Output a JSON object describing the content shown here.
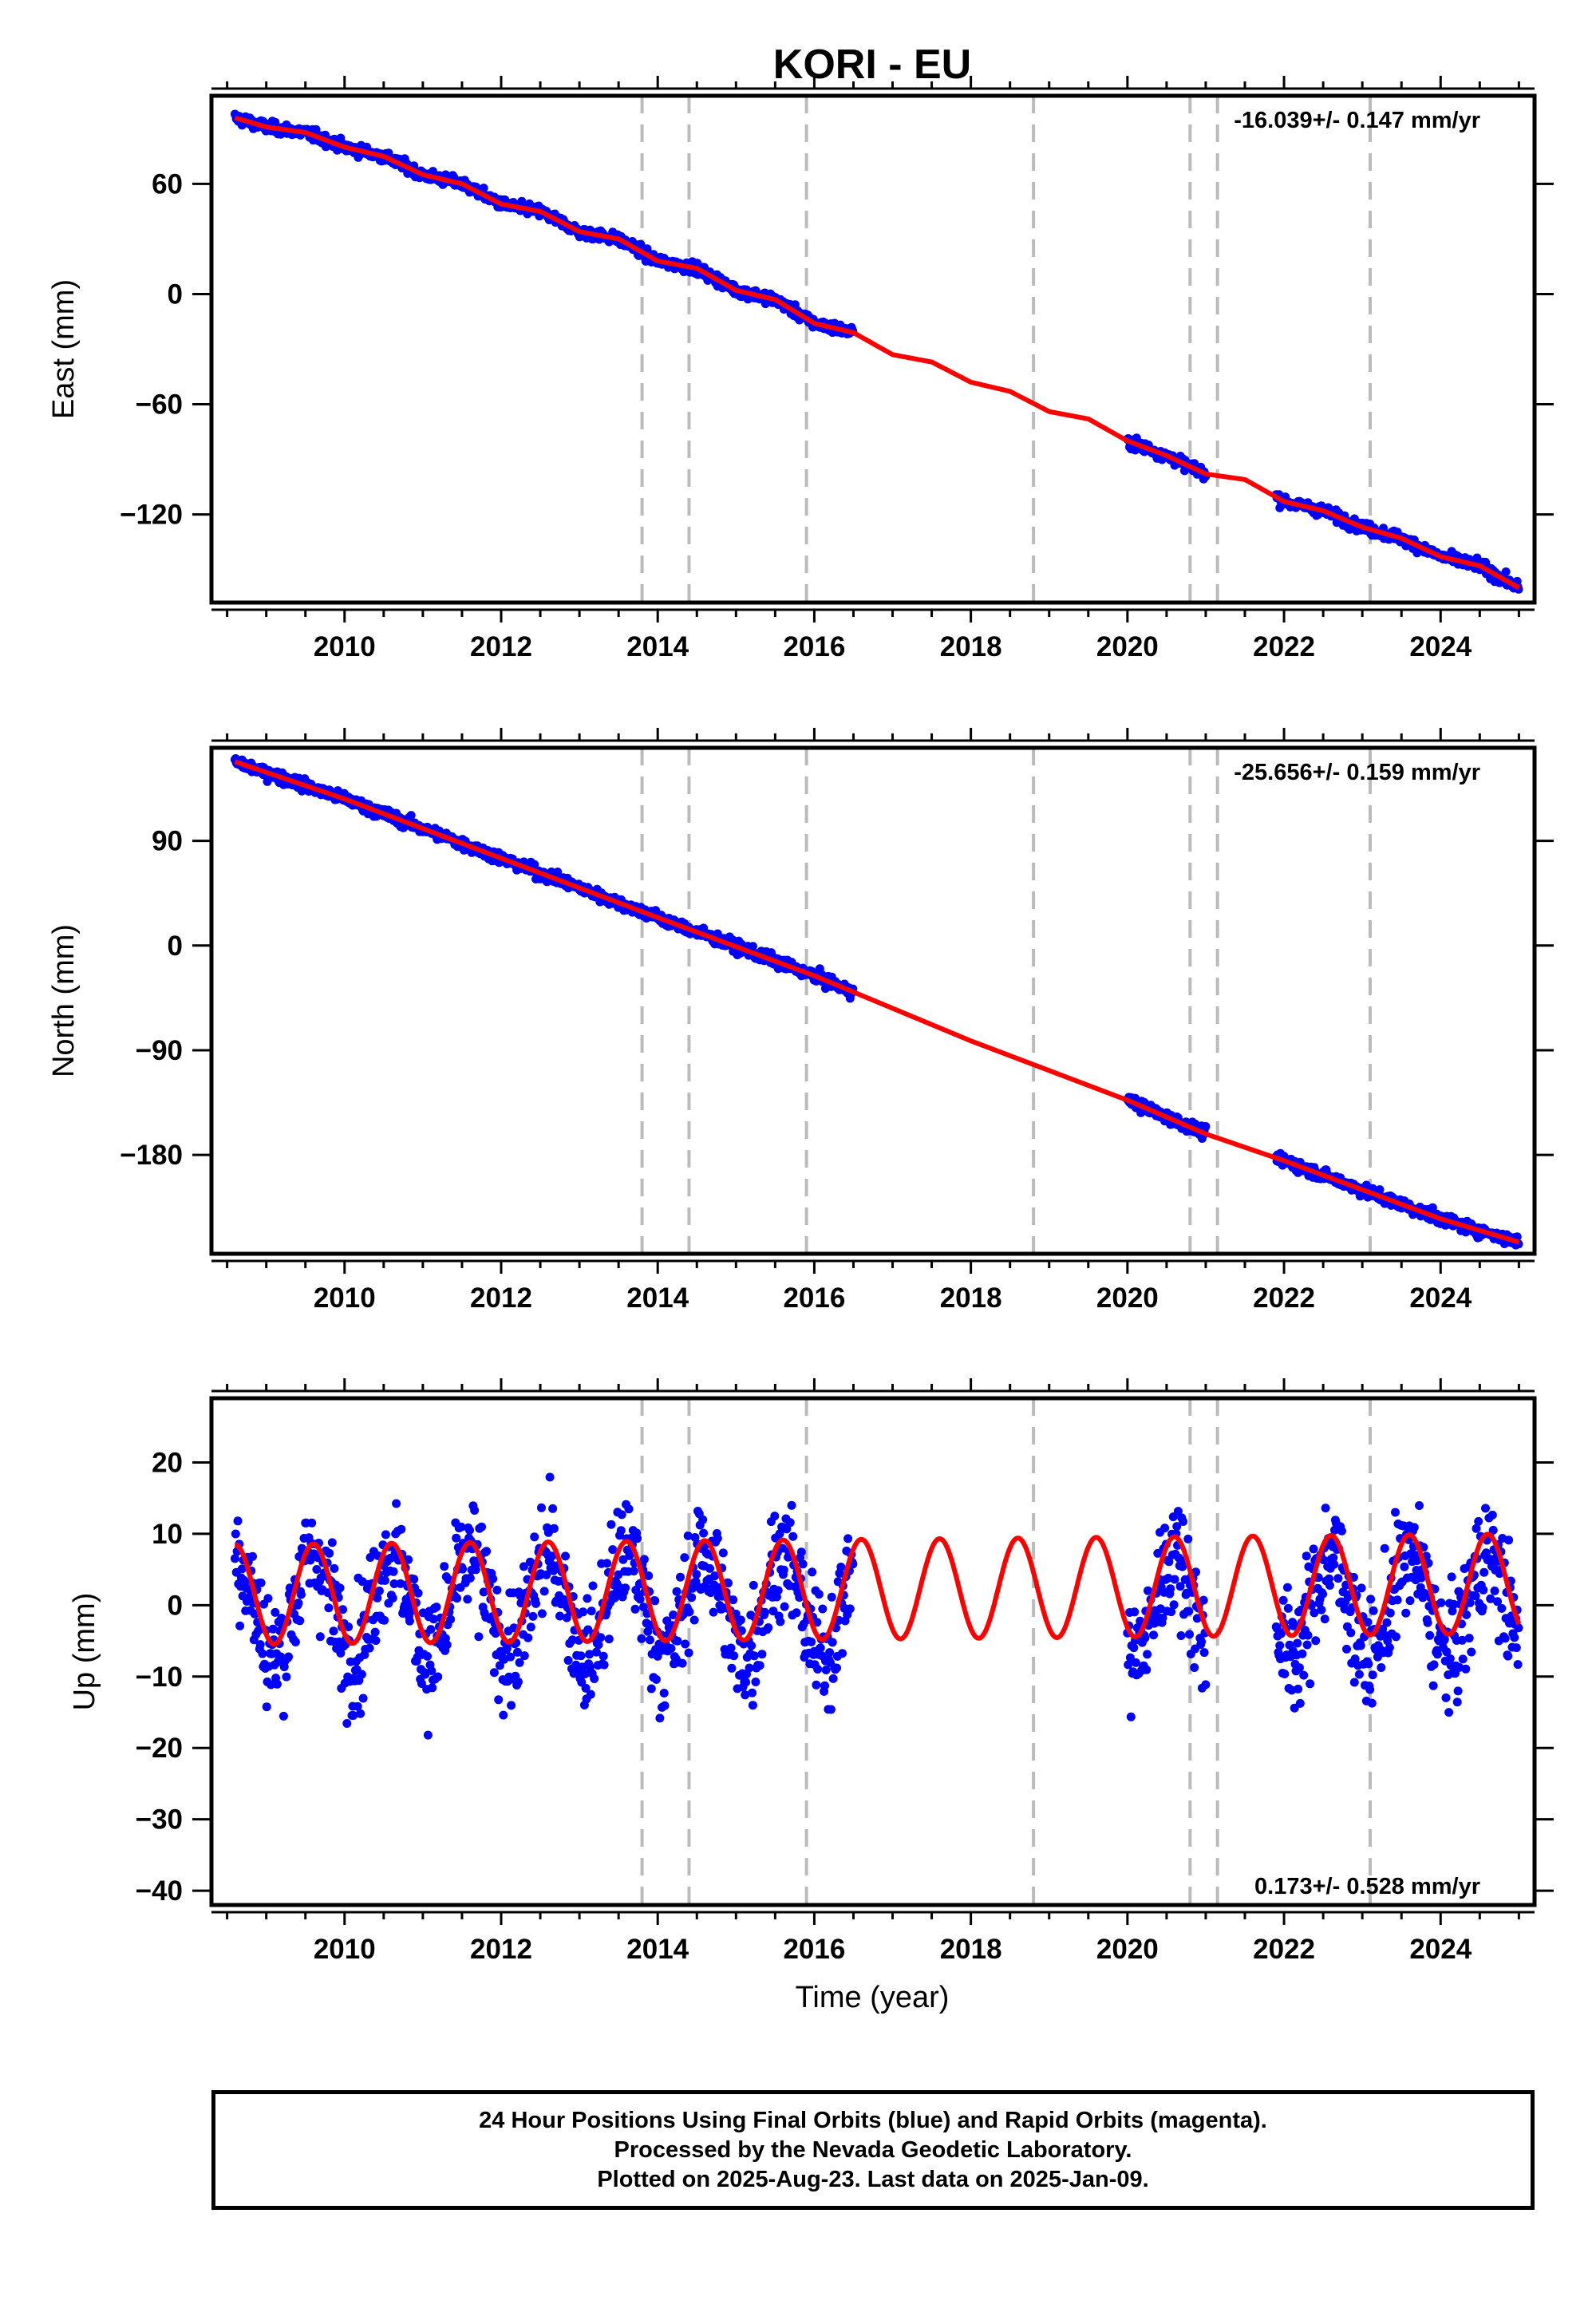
{
  "title": "KORI - EU",
  "x_axis": {
    "label": "Time (year)",
    "range": [
      2008.3,
      2025.2
    ],
    "ticks": [
      2010,
      2012,
      2014,
      2016,
      2018,
      2020,
      2022,
      2024
    ],
    "tick_labels": [
      "2010",
      "2012",
      "2014",
      "2016",
      "2018",
      "2020",
      "2022",
      "2024"
    ],
    "minor_step": 0.5
  },
  "event_lines": [
    2013.8,
    2014.4,
    2015.9,
    2018.8,
    2020.8,
    2021.15,
    2023.1
  ],
  "footer": {
    "line1": "24 Hour Positions Using Final Orbits (blue) and Rapid Orbits (magenta).",
    "line2": "Processed by the Nevada Geodetic Laboratory.",
    "line3": "Plotted on 2025-Aug-23. Last data on 2025-Jan-09."
  },
  "colors": {
    "observations": "#0000ff",
    "model": "#ff0000",
    "event_lines": "#bbbbbb",
    "axes": "#000000"
  },
  "chart_data": [
    {
      "type": "scatter",
      "component": "East",
      "ylabel": "East (mm)",
      "ylim": [
        -168,
        108
      ],
      "yticks": [
        60,
        0,
        -60,
        -120
      ],
      "ytick_labels": [
        "60",
        "0",
        "−60",
        "−120"
      ],
      "rate_text": "-16.039+/- 0.147 mm/yr",
      "rate_position": "top-right",
      "series": [
        {
          "role": "observations",
          "segments": [
            [
              2008.6,
              2016.5
            ],
            [
              2020.0,
              2021.0
            ],
            [
              2021.9,
              2025.0
            ]
          ],
          "x": [
            2008.6,
            2009.0,
            2009.5,
            2010.0,
            2010.5,
            2011.0,
            2011.5,
            2012.0,
            2012.5,
            2013.0,
            2013.5,
            2014.0,
            2014.5,
            2015.0,
            2015.5,
            2016.0,
            2016.5,
            2020.0,
            2020.5,
            2021.0,
            2022.0,
            2022.5,
            2023.0,
            2023.5,
            2024.0,
            2024.5,
            2025.0
          ],
          "y": [
            98,
            92,
            88,
            80,
            74,
            64,
            58,
            49,
            43,
            34,
            29,
            18,
            13,
            2,
            -4,
            -16,
            -20,
            -82,
            -90,
            -98,
            -112,
            -118,
            -126,
            -132,
            -143,
            -148,
            -160
          ],
          "scatter_mm": 1.5
        },
        {
          "role": "model",
          "x": [
            2008.6,
            2009.0,
            2009.5,
            2010.0,
            2010.5,
            2011.0,
            2011.5,
            2012.0,
            2012.5,
            2013.0,
            2013.5,
            2014.0,
            2014.5,
            2015.0,
            2015.5,
            2016.0,
            2016.5,
            2017.0,
            2017.5,
            2018.0,
            2018.5,
            2019.0,
            2019.5,
            2020.0,
            2020.5,
            2021.0,
            2021.5,
            2022.0,
            2022.5,
            2023.0,
            2023.5,
            2024.0,
            2024.5,
            2025.0
          ],
          "y": [
            96,
            91,
            88,
            80,
            75,
            65,
            60,
            49,
            45,
            34,
            30,
            18,
            14,
            2,
            -3,
            -16,
            -21,
            -33,
            -37,
            -48,
            -53,
            -64,
            -68,
            -80,
            -88,
            -98,
            -101,
            -113,
            -118,
            -127,
            -133,
            -143,
            -148,
            -160
          ],
          "seasonal_amp_mm": 2.5
        }
      ]
    },
    {
      "type": "scatter",
      "component": "North",
      "ylabel": "North (mm)",
      "ylim": [
        -265,
        170
      ],
      "yticks": [
        90,
        0,
        -90,
        -180
      ],
      "ytick_labels": [
        "90",
        "0",
        "−90",
        "−180"
      ],
      "rate_text": "-25.656+/- 0.159 mm/yr",
      "rate_position": "top-right",
      "series": [
        {
          "role": "observations",
          "segments": [
            [
              2008.6,
              2016.5
            ],
            [
              2020.0,
              2021.0
            ],
            [
              2021.9,
              2025.0
            ]
          ],
          "x": [
            2008.6,
            2010.0,
            2012.0,
            2014.0,
            2016.0,
            2016.5,
            2020.0,
            2021.0,
            2022.0,
            2024.0,
            2025.0
          ],
          "y": [
            160,
            128,
            76,
            25,
            -25,
            -37,
            -133,
            -161,
            -184,
            -236,
            -255
          ],
          "scatter_mm": 2.5
        },
        {
          "role": "model",
          "x": [
            2008.6,
            2010.0,
            2012.0,
            2014.0,
            2016.0,
            2018.0,
            2020.0,
            2021.0,
            2022.0,
            2024.0,
            2025.0
          ],
          "y": [
            158,
            126,
            75,
            24,
            -26,
            -82,
            -133,
            -162,
            -185,
            -235,
            -255
          ],
          "seasonal_amp_mm": 1.0
        }
      ]
    },
    {
      "type": "scatter",
      "component": "Up",
      "ylabel": "Up (mm)",
      "ylim": [
        -42,
        29
      ],
      "yticks": [
        20,
        10,
        0,
        -10,
        -20,
        -30,
        -40
      ],
      "ytick_labels": [
        "20",
        "10",
        "0",
        "−10",
        "−20",
        "−30",
        "−40"
      ],
      "rate_text": "0.173+/- 0.528 mm/yr",
      "rate_position": "bottom-right",
      "series": [
        {
          "role": "observations",
          "segments": [
            [
              2008.6,
              2016.5
            ],
            [
              2020.0,
              2021.0
            ],
            [
              2021.9,
              2025.0
            ]
          ],
          "x": [
            2008.6,
            2025.0
          ],
          "y": [
            0.0,
            0.0
          ],
          "seasonal_amp_mm": 7.0,
          "scatter_mm": 4.0
        },
        {
          "role": "model",
          "x": [
            2008.6,
            2025.0
          ],
          "y": [
            1.5,
            3.0
          ],
          "seasonal_amp_mm": 7.0,
          "peak_phase_year": 0.6
        }
      ]
    }
  ]
}
